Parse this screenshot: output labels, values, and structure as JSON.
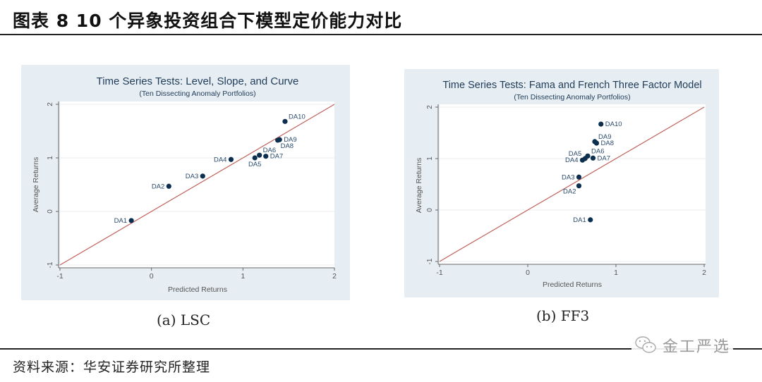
{
  "figure": {
    "title": "图表 8 10 个异象投资组合下模型定价能力对比",
    "source": "资料来源：华安证券研究所整理",
    "watermark": "金工严选",
    "watermark_icon": "wechat-icon"
  },
  "colors": {
    "panel_bg": "#e7eef3",
    "plot_bg": "#ffffff",
    "point": "#0d2f4f",
    "line45": "#c0605a",
    "title": "#1f3b57"
  },
  "panels": [
    {
      "caption": "(a) LSC",
      "title": "Time Series Tests: Level, Slope, and Curve",
      "subtitle": "(Ten Dissecting Anomaly Portfolios)",
      "xlabel": "Predicted Returns",
      "ylabel": "Average Returns",
      "xticks": [
        "-1",
        "0",
        "1",
        "2"
      ],
      "yticks": [
        "-1",
        "0",
        "1",
        "2"
      ]
    },
    {
      "caption": "(b) FF3",
      "title": "Time Series Tests: Fama and French Three Factor Model",
      "subtitle": "(Ten Dissecting Anomaly Portfolios)",
      "xlabel": "Predicted Returns",
      "ylabel": "Average Returns",
      "xticks": [
        "-1",
        "0",
        "1",
        "2"
      ],
      "yticks": [
        "-1",
        "0",
        "1",
        "2"
      ]
    }
  ],
  "chart_data": [
    {
      "type": "scatter",
      "title": "Time Series Tests: Level, Slope, and Curve",
      "subtitle": "(Ten Dissecting Anomaly Portfolios)",
      "caption": "(a) LSC",
      "xlabel": "Predicted Returns",
      "ylabel": "Average Returns",
      "xlim": [
        -1,
        2
      ],
      "ylim": [
        -1,
        2
      ],
      "grid": "horizontal",
      "reference_line": {
        "type": "45-degree",
        "from": [
          -1,
          -1
        ],
        "to": [
          2,
          2
        ]
      },
      "points": [
        {
          "label": "DA1",
          "x": -0.22,
          "y": -0.17,
          "label_pos": "left"
        },
        {
          "label": "DA2",
          "x": 0.19,
          "y": 0.47,
          "label_pos": "left"
        },
        {
          "label": "DA3",
          "x": 0.56,
          "y": 0.66,
          "label_pos": "left"
        },
        {
          "label": "DA4",
          "x": 0.87,
          "y": 0.97,
          "label_pos": "left"
        },
        {
          "label": "DA5",
          "x": 1.13,
          "y": 1.0,
          "label_pos": "below"
        },
        {
          "label": "DA6",
          "x": 1.18,
          "y": 1.05,
          "label_pos": "right-up"
        },
        {
          "label": "DA7",
          "x": 1.25,
          "y": 1.03,
          "label_pos": "right"
        },
        {
          "label": "DA8",
          "x": 1.38,
          "y": 1.33,
          "label_pos": "below-right"
        },
        {
          "label": "DA9",
          "x": 1.4,
          "y": 1.34,
          "label_pos": "right"
        },
        {
          "label": "DA10",
          "x": 1.46,
          "y": 1.68,
          "label_pos": "right-up"
        }
      ]
    },
    {
      "type": "scatter",
      "title": "Time Series Tests: Fama and French Three Factor Model",
      "subtitle": "(Ten Dissecting Anomaly Portfolios)",
      "caption": "(b) FF3",
      "xlabel": "Predicted Returns",
      "ylabel": "Average Returns",
      "xlim": [
        -1,
        2
      ],
      "ylim": [
        -1,
        2
      ],
      "grid": "horizontal",
      "reference_line": {
        "type": "45-degree",
        "from": [
          -1,
          -1
        ],
        "to": [
          2,
          2
        ]
      },
      "points": [
        {
          "label": "DA1",
          "x": 0.71,
          "y": -0.19,
          "label_pos": "left"
        },
        {
          "label": "DA2",
          "x": 0.58,
          "y": 0.47,
          "label_pos": "below-left"
        },
        {
          "label": "DA3",
          "x": 0.58,
          "y": 0.64,
          "label_pos": "left"
        },
        {
          "label": "DA4",
          "x": 0.62,
          "y": 0.97,
          "label_pos": "left"
        },
        {
          "label": "DA5",
          "x": 0.65,
          "y": 1.0,
          "label_pos": "left-up"
        },
        {
          "label": "DA6",
          "x": 0.68,
          "y": 1.05,
          "label_pos": "right-up"
        },
        {
          "label": "DA7",
          "x": 0.74,
          "y": 1.01,
          "label_pos": "right"
        },
        {
          "label": "DA8",
          "x": 0.78,
          "y": 1.3,
          "label_pos": "right"
        },
        {
          "label": "DA9",
          "x": 0.76,
          "y": 1.33,
          "label_pos": "right-up"
        },
        {
          "label": "DA10",
          "x": 0.83,
          "y": 1.67,
          "label_pos": "right"
        }
      ]
    }
  ]
}
